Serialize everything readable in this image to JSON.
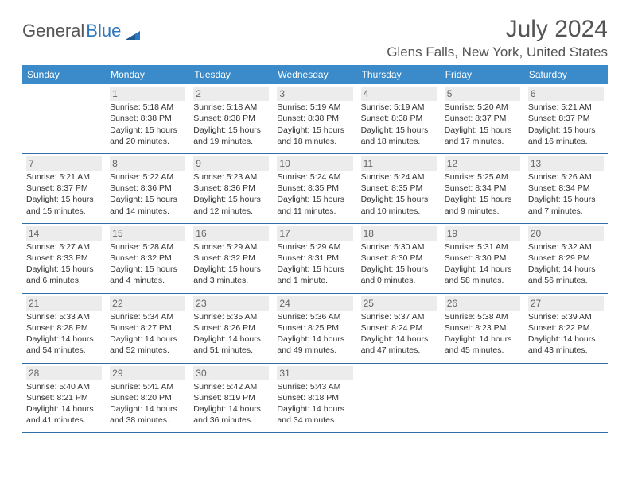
{
  "logo": {
    "text1": "General",
    "text2": "Blue"
  },
  "title": "July 2024",
  "location": "Glens Falls, New York, United States",
  "colors": {
    "header_bg": "#3b8bca",
    "header_text": "#ffffff",
    "row_border": "#2f6fa8",
    "daynum_bg": "#ececec",
    "text": "#333333",
    "logo_blue": "#2f77bc"
  },
  "daysOfWeek": [
    "Sunday",
    "Monday",
    "Tuesday",
    "Wednesday",
    "Thursday",
    "Friday",
    "Saturday"
  ],
  "weeks": [
    [
      {
        "num": "",
        "sunrise": "",
        "sunset": "",
        "daylight": ""
      },
      {
        "num": "1",
        "sunrise": "Sunrise: 5:18 AM",
        "sunset": "Sunset: 8:38 PM",
        "daylight": "Daylight: 15 hours and 20 minutes."
      },
      {
        "num": "2",
        "sunrise": "Sunrise: 5:18 AM",
        "sunset": "Sunset: 8:38 PM",
        "daylight": "Daylight: 15 hours and 19 minutes."
      },
      {
        "num": "3",
        "sunrise": "Sunrise: 5:19 AM",
        "sunset": "Sunset: 8:38 PM",
        "daylight": "Daylight: 15 hours and 18 minutes."
      },
      {
        "num": "4",
        "sunrise": "Sunrise: 5:19 AM",
        "sunset": "Sunset: 8:38 PM",
        "daylight": "Daylight: 15 hours and 18 minutes."
      },
      {
        "num": "5",
        "sunrise": "Sunrise: 5:20 AM",
        "sunset": "Sunset: 8:37 PM",
        "daylight": "Daylight: 15 hours and 17 minutes."
      },
      {
        "num": "6",
        "sunrise": "Sunrise: 5:21 AM",
        "sunset": "Sunset: 8:37 PM",
        "daylight": "Daylight: 15 hours and 16 minutes."
      }
    ],
    [
      {
        "num": "7",
        "sunrise": "Sunrise: 5:21 AM",
        "sunset": "Sunset: 8:37 PM",
        "daylight": "Daylight: 15 hours and 15 minutes."
      },
      {
        "num": "8",
        "sunrise": "Sunrise: 5:22 AM",
        "sunset": "Sunset: 8:36 PM",
        "daylight": "Daylight: 15 hours and 14 minutes."
      },
      {
        "num": "9",
        "sunrise": "Sunrise: 5:23 AM",
        "sunset": "Sunset: 8:36 PM",
        "daylight": "Daylight: 15 hours and 12 minutes."
      },
      {
        "num": "10",
        "sunrise": "Sunrise: 5:24 AM",
        "sunset": "Sunset: 8:35 PM",
        "daylight": "Daylight: 15 hours and 11 minutes."
      },
      {
        "num": "11",
        "sunrise": "Sunrise: 5:24 AM",
        "sunset": "Sunset: 8:35 PM",
        "daylight": "Daylight: 15 hours and 10 minutes."
      },
      {
        "num": "12",
        "sunrise": "Sunrise: 5:25 AM",
        "sunset": "Sunset: 8:34 PM",
        "daylight": "Daylight: 15 hours and 9 minutes."
      },
      {
        "num": "13",
        "sunrise": "Sunrise: 5:26 AM",
        "sunset": "Sunset: 8:34 PM",
        "daylight": "Daylight: 15 hours and 7 minutes."
      }
    ],
    [
      {
        "num": "14",
        "sunrise": "Sunrise: 5:27 AM",
        "sunset": "Sunset: 8:33 PM",
        "daylight": "Daylight: 15 hours and 6 minutes."
      },
      {
        "num": "15",
        "sunrise": "Sunrise: 5:28 AM",
        "sunset": "Sunset: 8:32 PM",
        "daylight": "Daylight: 15 hours and 4 minutes."
      },
      {
        "num": "16",
        "sunrise": "Sunrise: 5:29 AM",
        "sunset": "Sunset: 8:32 PM",
        "daylight": "Daylight: 15 hours and 3 minutes."
      },
      {
        "num": "17",
        "sunrise": "Sunrise: 5:29 AM",
        "sunset": "Sunset: 8:31 PM",
        "daylight": "Daylight: 15 hours and 1 minute."
      },
      {
        "num": "18",
        "sunrise": "Sunrise: 5:30 AM",
        "sunset": "Sunset: 8:30 PM",
        "daylight": "Daylight: 15 hours and 0 minutes."
      },
      {
        "num": "19",
        "sunrise": "Sunrise: 5:31 AM",
        "sunset": "Sunset: 8:30 PM",
        "daylight": "Daylight: 14 hours and 58 minutes."
      },
      {
        "num": "20",
        "sunrise": "Sunrise: 5:32 AM",
        "sunset": "Sunset: 8:29 PM",
        "daylight": "Daylight: 14 hours and 56 minutes."
      }
    ],
    [
      {
        "num": "21",
        "sunrise": "Sunrise: 5:33 AM",
        "sunset": "Sunset: 8:28 PM",
        "daylight": "Daylight: 14 hours and 54 minutes."
      },
      {
        "num": "22",
        "sunrise": "Sunrise: 5:34 AM",
        "sunset": "Sunset: 8:27 PM",
        "daylight": "Daylight: 14 hours and 52 minutes."
      },
      {
        "num": "23",
        "sunrise": "Sunrise: 5:35 AM",
        "sunset": "Sunset: 8:26 PM",
        "daylight": "Daylight: 14 hours and 51 minutes."
      },
      {
        "num": "24",
        "sunrise": "Sunrise: 5:36 AM",
        "sunset": "Sunset: 8:25 PM",
        "daylight": "Daylight: 14 hours and 49 minutes."
      },
      {
        "num": "25",
        "sunrise": "Sunrise: 5:37 AM",
        "sunset": "Sunset: 8:24 PM",
        "daylight": "Daylight: 14 hours and 47 minutes."
      },
      {
        "num": "26",
        "sunrise": "Sunrise: 5:38 AM",
        "sunset": "Sunset: 8:23 PM",
        "daylight": "Daylight: 14 hours and 45 minutes."
      },
      {
        "num": "27",
        "sunrise": "Sunrise: 5:39 AM",
        "sunset": "Sunset: 8:22 PM",
        "daylight": "Daylight: 14 hours and 43 minutes."
      }
    ],
    [
      {
        "num": "28",
        "sunrise": "Sunrise: 5:40 AM",
        "sunset": "Sunset: 8:21 PM",
        "daylight": "Daylight: 14 hours and 41 minutes."
      },
      {
        "num": "29",
        "sunrise": "Sunrise: 5:41 AM",
        "sunset": "Sunset: 8:20 PM",
        "daylight": "Daylight: 14 hours and 38 minutes."
      },
      {
        "num": "30",
        "sunrise": "Sunrise: 5:42 AM",
        "sunset": "Sunset: 8:19 PM",
        "daylight": "Daylight: 14 hours and 36 minutes."
      },
      {
        "num": "31",
        "sunrise": "Sunrise: 5:43 AM",
        "sunset": "Sunset: 8:18 PM",
        "daylight": "Daylight: 14 hours and 34 minutes."
      },
      {
        "num": "",
        "sunrise": "",
        "sunset": "",
        "daylight": ""
      },
      {
        "num": "",
        "sunrise": "",
        "sunset": "",
        "daylight": ""
      },
      {
        "num": "",
        "sunrise": "",
        "sunset": "",
        "daylight": ""
      }
    ]
  ]
}
